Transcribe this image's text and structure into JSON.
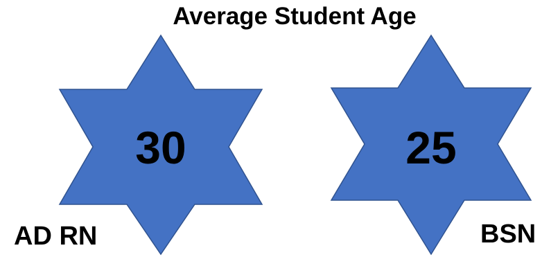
{
  "title": "Average Student Age",
  "colors": {
    "star_fill": "#4472C4",
    "star_stroke": "#2F528F"
  },
  "groups": [
    {
      "label": "AD RN",
      "value": "30"
    },
    {
      "label": "BSN",
      "value": "25"
    }
  ]
}
